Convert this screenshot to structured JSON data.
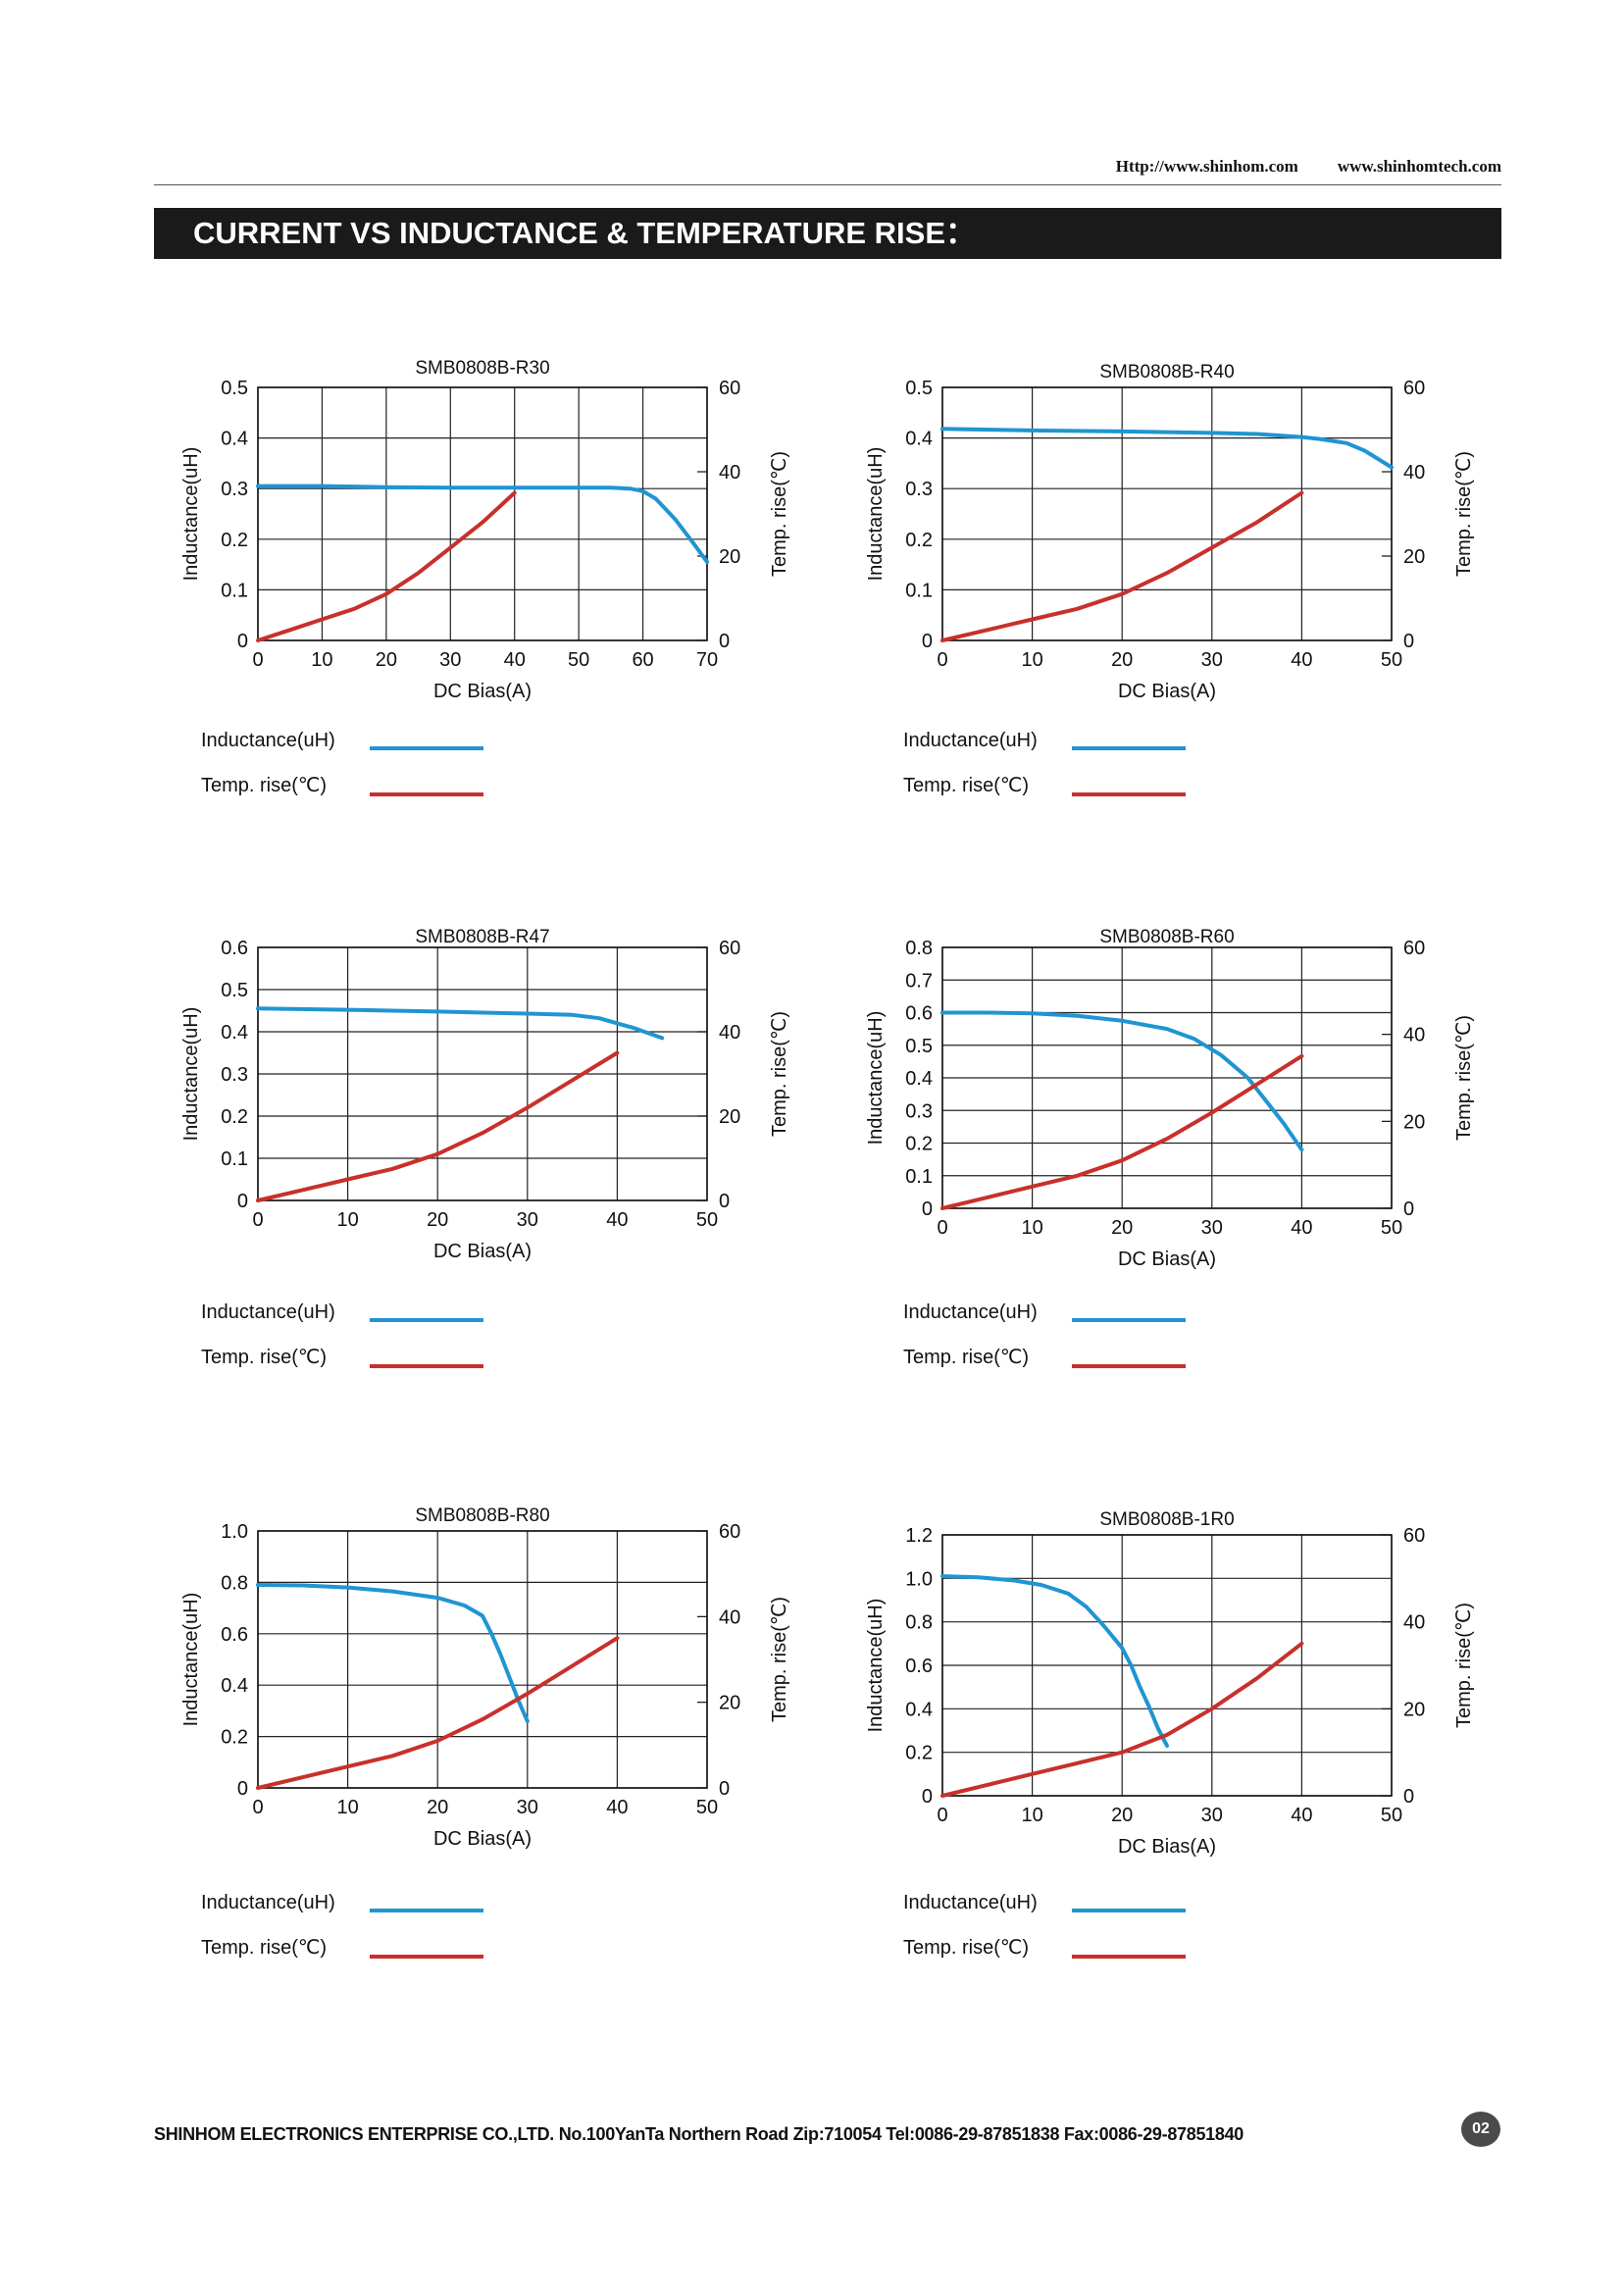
{
  "header": {
    "url_1": "Http://www.shinhom.com",
    "url_2": "www.shinhomtech.com",
    "banner_title": "CURRENT VS INDUCTANCE & TEMPERATURE RISE："
  },
  "legend": {
    "inductance_label": "Inductance(uH)",
    "temp_label": "Temp. rise(℃)"
  },
  "footer": {
    "text": "SHINHOM ELECTRONICS ENTERPRISE CO.,LTD.   No.100YanTa Northern Road   Zip:710054   Tel:0086-29-87851838   Fax:0086-29-87851840",
    "page_number": "02"
  },
  "colors": {
    "inductance": "#1f95d2",
    "temp": "#c8302c",
    "grid": "#222222"
  },
  "chart_data": [
    {
      "type": "line",
      "title": "SMB0808B-R30",
      "xlabel": "DC Bias(A)",
      "ylabel": "Inductance(uH)",
      "y2label": "Temp. rise(℃)",
      "xlim": [
        0,
        70
      ],
      "xticks": [
        0,
        10,
        20,
        30,
        40,
        50,
        60,
        70
      ],
      "ylim": [
        0,
        0.5
      ],
      "yticks": [
        0,
        0.1,
        0.2,
        0.3,
        0.4,
        0.5
      ],
      "ytick_labels": [
        "0",
        "0.1",
        "0.2",
        "0.3",
        "0.4",
        "0.5"
      ],
      "y2lim": [
        0,
        60
      ],
      "y2ticks": [
        0,
        20,
        40,
        60
      ],
      "grid": true,
      "series": [
        {
          "name": "Inductance(uH)",
          "axis": "left",
          "x": [
            0,
            10,
            20,
            30,
            40,
            50,
            55,
            58,
            60,
            62,
            65,
            68,
            70
          ],
          "y": [
            0.305,
            0.305,
            0.303,
            0.302,
            0.302,
            0.302,
            0.302,
            0.3,
            0.295,
            0.28,
            0.24,
            0.19,
            0.155
          ]
        },
        {
          "name": "Temp. rise(℃)",
          "axis": "right",
          "x": [
            0,
            5,
            10,
            15,
            20,
            25,
            30,
            35,
            40
          ],
          "y": [
            0,
            2.5,
            5,
            7.5,
            11,
            16,
            22,
            28,
            35
          ]
        }
      ]
    },
    {
      "type": "line",
      "title": "SMB0808B-R40",
      "xlabel": "DC Bias(A)",
      "ylabel": "Inductance(uH)",
      "y2label": "Temp. rise(℃)",
      "xlim": [
        0,
        50
      ],
      "xticks": [
        0,
        10,
        20,
        30,
        40,
        50
      ],
      "ylim": [
        0,
        0.5
      ],
      "yticks": [
        0,
        0.1,
        0.2,
        0.3,
        0.4,
        0.5
      ],
      "ytick_labels": [
        "0",
        "0.1",
        "0.2",
        "0.3",
        "0.4",
        "0.5"
      ],
      "y2lim": [
        0,
        60
      ],
      "y2ticks": [
        0,
        20,
        40,
        60
      ],
      "grid": true,
      "series": [
        {
          "name": "Inductance(uH)",
          "axis": "left",
          "x": [
            0,
            10,
            20,
            30,
            35,
            40,
            42,
            45,
            47,
            50
          ],
          "y": [
            0.418,
            0.415,
            0.413,
            0.41,
            0.408,
            0.402,
            0.398,
            0.39,
            0.375,
            0.342
          ]
        },
        {
          "name": "Temp. rise(℃)",
          "axis": "right",
          "x": [
            0,
            5,
            10,
            15,
            20,
            25,
            30,
            35,
            40
          ],
          "y": [
            0,
            2.5,
            5,
            7.5,
            11,
            16,
            22,
            28,
            35
          ]
        }
      ]
    },
    {
      "type": "line",
      "title": "SMB0808B-R47",
      "xlabel": "DC Bias(A)",
      "ylabel": "Inductance(uH)",
      "y2label": "Temp. rise(℃)",
      "xlim": [
        0,
        50
      ],
      "xticks": [
        0,
        10,
        20,
        30,
        40,
        50
      ],
      "ylim": [
        0,
        0.6
      ],
      "yticks": [
        0,
        0.1,
        0.2,
        0.3,
        0.4,
        0.5,
        0.6
      ],
      "ytick_labels": [
        "0",
        "0.1",
        "0.2",
        "0.3",
        "0.4",
        "0.5",
        "0.6"
      ],
      "y2lim": [
        0,
        60
      ],
      "y2ticks": [
        0,
        20,
        40,
        60
      ],
      "grid": true,
      "series": [
        {
          "name": "Inductance(uH)",
          "axis": "left",
          "x": [
            0,
            10,
            20,
            30,
            35,
            38,
            40,
            42,
            45
          ],
          "y": [
            0.455,
            0.452,
            0.448,
            0.443,
            0.44,
            0.432,
            0.42,
            0.408,
            0.385
          ]
        },
        {
          "name": "Temp. rise(℃)",
          "axis": "right",
          "x": [
            0,
            5,
            10,
            15,
            20,
            25,
            30,
            35,
            40
          ],
          "y": [
            0,
            2.5,
            5,
            7.5,
            11,
            16,
            22,
            28.5,
            35
          ]
        }
      ]
    },
    {
      "type": "line",
      "title": "SMB0808B-R60",
      "xlabel": "DC Bias(A)",
      "ylabel": "Inductance(uH)",
      "y2label": "Temp. rise(℃)",
      "xlim": [
        0,
        50
      ],
      "xticks": [
        0,
        10,
        20,
        30,
        40,
        50
      ],
      "ylim": [
        0,
        0.8
      ],
      "yticks": [
        0,
        0.1,
        0.2,
        0.3,
        0.4,
        0.5,
        0.6,
        0.7,
        0.8
      ],
      "ytick_labels": [
        "0",
        "0.1",
        "0.2",
        "0.3",
        "0.4",
        "0.5",
        "0.6",
        "0.7",
        "0.8"
      ],
      "y2lim": [
        0,
        60
      ],
      "y2ticks": [
        0,
        20,
        40,
        60
      ],
      "grid": true,
      "series": [
        {
          "name": "Inductance(uH)",
          "axis": "left",
          "x": [
            0,
            5,
            10,
            15,
            20,
            25,
            28,
            31,
            34,
            36,
            38,
            40
          ],
          "y": [
            0.6,
            0.6,
            0.598,
            0.59,
            0.575,
            0.55,
            0.52,
            0.47,
            0.4,
            0.33,
            0.26,
            0.18
          ]
        },
        {
          "name": "Temp. rise(℃)",
          "axis": "right",
          "x": [
            0,
            5,
            10,
            15,
            20,
            25,
            30,
            35,
            40
          ],
          "y": [
            0,
            2.5,
            5,
            7.5,
            11,
            16,
            22,
            28.5,
            35
          ]
        }
      ]
    },
    {
      "type": "line",
      "title": "SMB0808B-R80",
      "xlabel": "DC Bias(A)",
      "ylabel": "Inductance(uH)",
      "y2label": "Temp. rise(℃)",
      "xlim": [
        0,
        50
      ],
      "xticks": [
        0,
        10,
        20,
        30,
        40,
        50
      ],
      "ylim": [
        0,
        1.0
      ],
      "yticks": [
        0,
        0.2,
        0.4,
        0.6,
        0.8,
        1.0
      ],
      "ytick_labels": [
        "0",
        "0.2",
        "0.4",
        "0.6",
        "0.8",
        "1.0"
      ],
      "y2lim": [
        0,
        60
      ],
      "y2ticks": [
        0,
        20,
        40,
        60
      ],
      "grid": true,
      "series": [
        {
          "name": "Inductance(uH)",
          "axis": "left",
          "x": [
            0,
            5,
            10,
            15,
            20,
            23,
            25,
            26,
            27,
            28,
            29,
            30
          ],
          "y": [
            0.79,
            0.788,
            0.78,
            0.765,
            0.74,
            0.71,
            0.67,
            0.6,
            0.52,
            0.43,
            0.34,
            0.26
          ]
        },
        {
          "name": "Temp. rise(℃)",
          "axis": "right",
          "x": [
            0,
            5,
            10,
            15,
            20,
            25,
            30,
            35,
            40
          ],
          "y": [
            0,
            2.5,
            5,
            7.5,
            11,
            16,
            22,
            28.5,
            35
          ]
        }
      ]
    },
    {
      "type": "line",
      "title": "SMB0808B-1R0",
      "xlabel": "DC Bias(A)",
      "ylabel": "Inductance(uH)",
      "y2label": "Temp. rise(℃)",
      "xlim": [
        0,
        50
      ],
      "xticks": [
        0,
        10,
        20,
        30,
        40,
        50
      ],
      "ylim": [
        0,
        1.2
      ],
      "yticks": [
        0,
        0.2,
        0.4,
        0.6,
        0.8,
        1.0,
        1.2
      ],
      "ytick_labels": [
        "0",
        "0.2",
        "0.4",
        "0.6",
        "0.8",
        "1.0",
        "1.2"
      ],
      "y2lim": [
        0,
        60
      ],
      "y2ticks": [
        0,
        20,
        40,
        60
      ],
      "grid": true,
      "series": [
        {
          "name": "Inductance(uH)",
          "axis": "left",
          "x": [
            0,
            4,
            8,
            11,
            14,
            16,
            18,
            20,
            21,
            22,
            23,
            24,
            25
          ],
          "y": [
            1.01,
            1.005,
            0.99,
            0.97,
            0.93,
            0.87,
            0.78,
            0.68,
            0.6,
            0.5,
            0.41,
            0.31,
            0.23
          ]
        },
        {
          "name": "Temp. rise(℃)",
          "axis": "right",
          "x": [
            0,
            5,
            10,
            15,
            20,
            25,
            30,
            35,
            40
          ],
          "y": [
            0,
            2.5,
            5,
            7.5,
            10,
            14,
            20,
            27,
            35
          ]
        }
      ]
    }
  ]
}
